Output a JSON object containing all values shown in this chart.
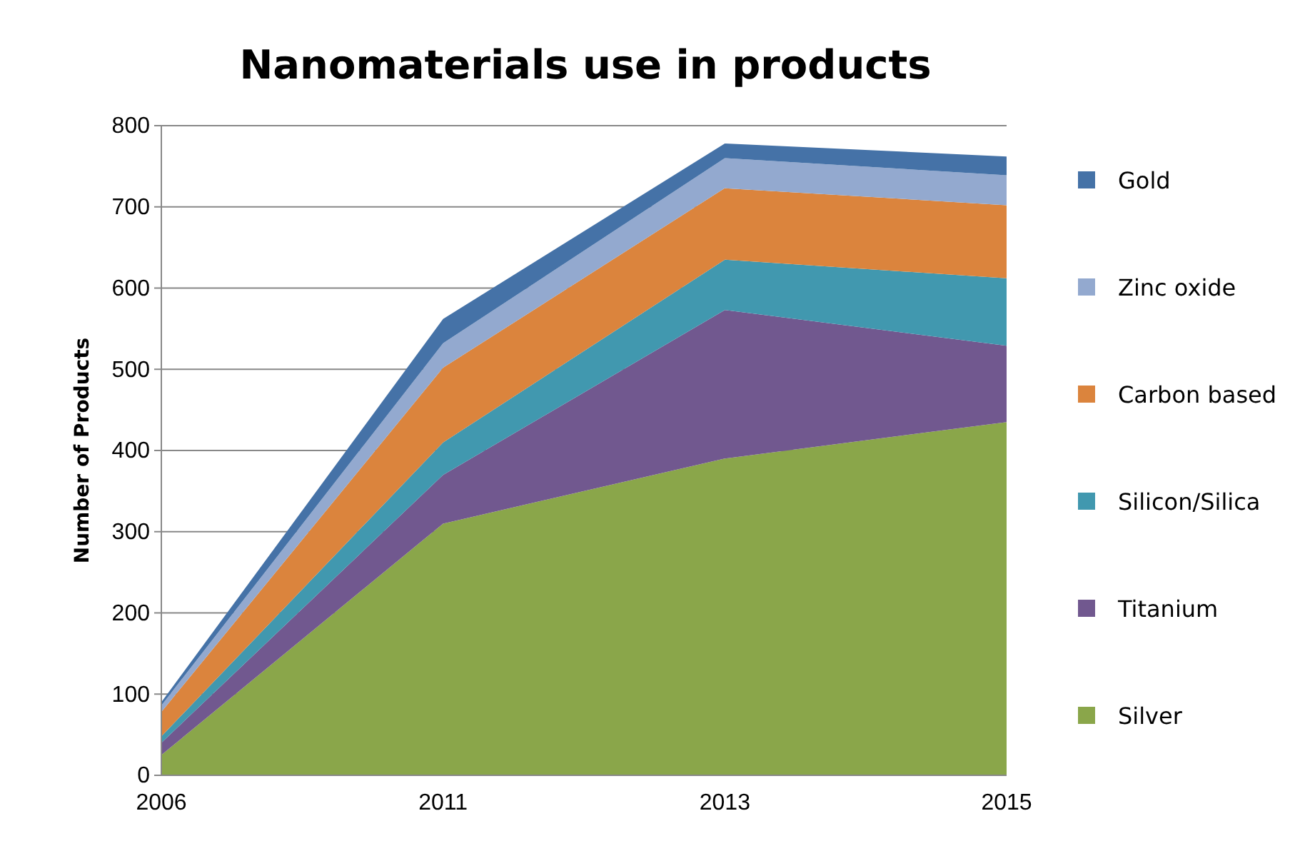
{
  "chart_data": {
    "type": "area",
    "stacked": true,
    "title": "Nanomaterials use in products",
    "ylabel": "Number of Products",
    "categories": [
      "2006",
      "2011",
      "2013",
      "2015"
    ],
    "series": [
      {
        "name": "Silver",
        "color": "#8aa64a",
        "values": [
          25,
          310,
          390,
          435
        ]
      },
      {
        "name": "Titanium",
        "color": "#71588f",
        "values": [
          15,
          60,
          183,
          94
        ]
      },
      {
        "name": "Silicon/Silica",
        "color": "#4198af",
        "values": [
          8,
          40,
          62,
          83
        ]
      },
      {
        "name": "Carbon based",
        "color": "#db843d",
        "values": [
          30,
          92,
          88,
          90
        ]
      },
      {
        "name": "Zinc oxide",
        "color": "#93a9cf",
        "values": [
          8,
          30,
          37,
          37
        ]
      },
      {
        "name": "Gold",
        "color": "#4572a7",
        "values": [
          4,
          30,
          18,
          23
        ]
      }
    ],
    "ylim": [
      0,
      800
    ],
    "yticks": [
      0,
      100,
      200,
      300,
      400,
      500,
      600,
      700,
      800
    ],
    "grid": "y",
    "legend": "right"
  }
}
